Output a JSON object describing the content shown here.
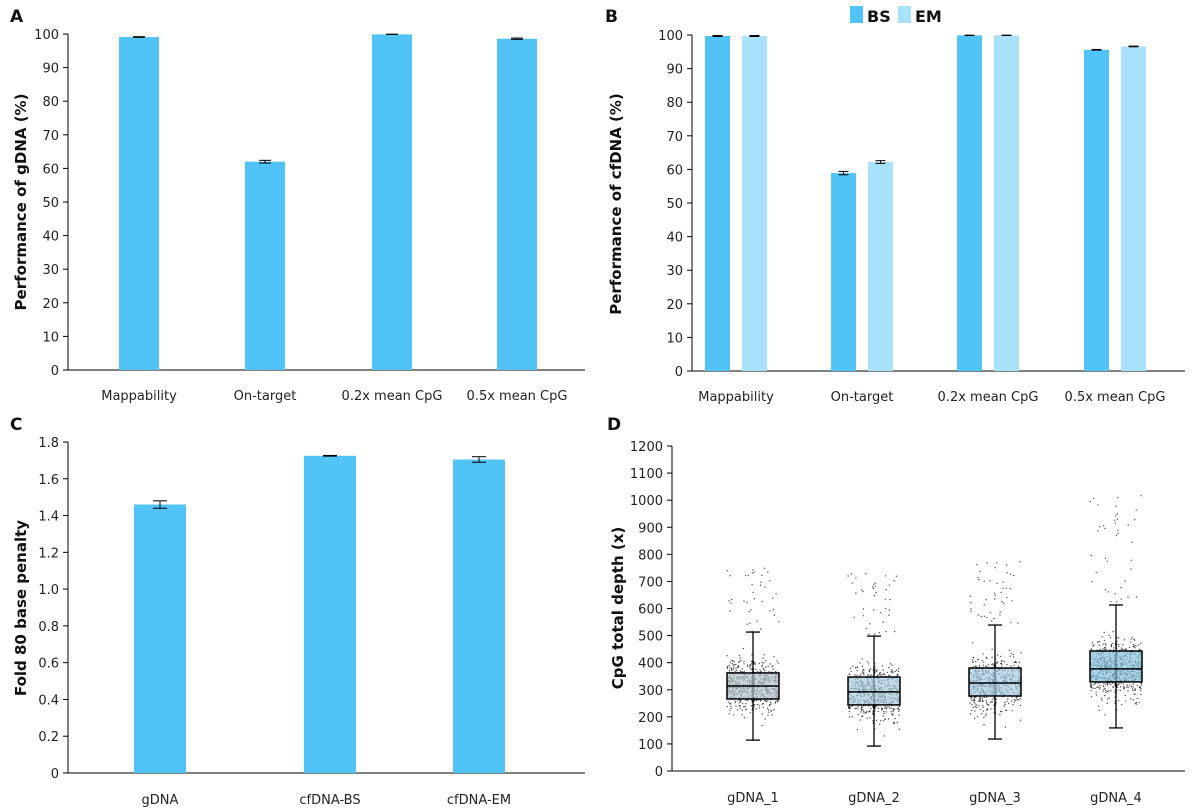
{
  "colors": {
    "bs": "#52c3f7",
    "em": "#a8e1fa",
    "axis": "#000000",
    "box_fill": "#8fc4dc",
    "point": "#111111"
  },
  "chart_data": [
    {
      "panel": "A",
      "type": "bar",
      "ylabel": "Performance of gDNA (%)",
      "ylim": [
        0,
        100
      ],
      "yticks": [
        0,
        10,
        20,
        30,
        40,
        50,
        60,
        70,
        80,
        90,
        100
      ],
      "categories": [
        "Mappability",
        "On-target",
        "0.2x mean CpG",
        "0.5x mean CpG"
      ],
      "values": [
        99.1,
        62.0,
        99.9,
        98.6
      ],
      "errors": [
        0.1,
        0.4,
        0.05,
        0.2
      ]
    },
    {
      "panel": "B",
      "type": "bar",
      "ylabel": "Performance of cfDNA (%)",
      "ylim": [
        0,
        100
      ],
      "yticks": [
        0,
        10,
        20,
        30,
        40,
        50,
        60,
        70,
        80,
        90,
        100
      ],
      "legend": "top",
      "categories": [
        "Mappability",
        "On-target",
        "0.2x mean CpG",
        "0.5x mean CpG"
      ],
      "series": [
        {
          "name": "BS",
          "values": [
            99.7,
            58.9,
            99.9,
            95.6
          ],
          "errors": [
            0.15,
            0.5,
            0.05,
            0.1
          ]
        },
        {
          "name": "EM",
          "values": [
            99.7,
            62.2,
            99.9,
            96.6
          ],
          "errors": [
            0.15,
            0.4,
            0.05,
            0.1
          ]
        }
      ]
    },
    {
      "panel": "C",
      "type": "bar",
      "ylabel": "Fold 80 base penalty",
      "ylim": [
        0,
        1.8
      ],
      "yticks": [
        0,
        0.2,
        0.4,
        0.6,
        0.8,
        1.0,
        1.2,
        1.4,
        1.6,
        1.8
      ],
      "ytick_labels": [
        "0",
        "0.2",
        "0.4",
        "0.6",
        "0.8",
        "1.0",
        "1.2",
        "1.4",
        "1.6",
        "1.8"
      ],
      "categories": [
        "gDNA",
        "cfDNA-BS",
        "cfDNA-EM"
      ],
      "values": [
        1.46,
        1.725,
        1.705
      ],
      "errors": [
        0.02,
        0.002,
        0.015
      ]
    },
    {
      "panel": "D",
      "type": "box",
      "ylabel": "CpG total depth (x)",
      "ylim": [
        0,
        1200
      ],
      "yticks": [
        0,
        100,
        200,
        300,
        400,
        500,
        600,
        700,
        800,
        900,
        1000,
        1100,
        1200
      ],
      "categories": [
        "gDNA_1",
        "gDNA_2",
        "gDNA_3",
        "gDNA_4"
      ],
      "boxes": [
        {
          "q1": 266,
          "median": 314,
          "q3": 362,
          "whisker_low": 114,
          "whisker_high": 513,
          "min": 60,
          "max": 755
        },
        {
          "q1": 244,
          "median": 292,
          "q3": 347,
          "whisker_low": 92,
          "whisker_high": 498,
          "min": 55,
          "max": 735
        },
        {
          "q1": 277,
          "median": 325,
          "q3": 380,
          "whisker_low": 118,
          "whisker_high": 539,
          "min": 55,
          "max": 775
        },
        {
          "q1": 329,
          "median": 377,
          "q3": 443,
          "whisker_low": 159,
          "whisker_high": 613,
          "min": 70,
          "max": 1020
        }
      ]
    }
  ]
}
